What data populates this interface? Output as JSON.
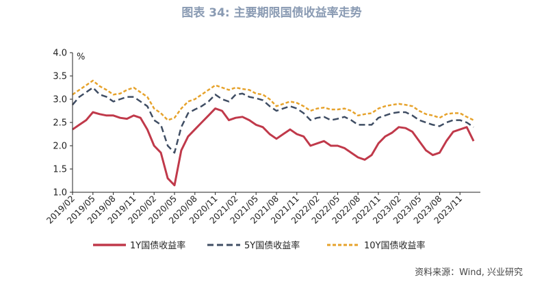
{
  "title": "图表 34: 主要期限国债收益率走势",
  "source": "资料来源：Wind, 兴业研究",
  "chart_data": {
    "type": "line",
    "title": "图表 34: 主要期限国债收益率走势",
    "unit": "%",
    "ylim": [
      1.0,
      4.0
    ],
    "y_ticks": [
      "1.0",
      "1.5",
      "2.0",
      "2.5",
      "3.0",
      "3.5",
      "4.0"
    ],
    "x_range": [
      "2019/02",
      "2024/02"
    ],
    "x_tick_labels": [
      "2019/02",
      "2019/05",
      "2019/08",
      "2019/11",
      "2020/02",
      "2020/05",
      "2020/08",
      "2020/11",
      "2021/02",
      "2021/05",
      "2021/08",
      "2021/11",
      "2022/02",
      "2022/05",
      "2022/08",
      "2022/11",
      "2023/02",
      "2023/05",
      "2023/08",
      "2023/11"
    ],
    "grid": false,
    "legend_position": "bottom",
    "x": [
      "2019/02",
      "2019/03",
      "2019/04",
      "2019/05",
      "2019/06",
      "2019/07",
      "2019/08",
      "2019/09",
      "2019/10",
      "2019/11",
      "2019/12",
      "2020/01",
      "2020/02",
      "2020/03",
      "2020/04",
      "2020/05",
      "2020/06",
      "2020/07",
      "2020/08",
      "2020/09",
      "2020/10",
      "2020/11",
      "2020/12",
      "2021/01",
      "2021/02",
      "2021/03",
      "2021/04",
      "2021/05",
      "2021/06",
      "2021/07",
      "2021/08",
      "2021/09",
      "2021/10",
      "2021/11",
      "2021/12",
      "2022/01",
      "2022/02",
      "2022/03",
      "2022/04",
      "2022/05",
      "2022/06",
      "2022/07",
      "2022/08",
      "2022/09",
      "2022/10",
      "2022/11",
      "2022/12",
      "2023/01",
      "2023/02",
      "2023/03",
      "2023/04",
      "2023/05",
      "2023/06",
      "2023/07",
      "2023/08",
      "2023/09",
      "2023/10",
      "2023/11",
      "2023/12",
      "2024/01"
    ],
    "series": [
      {
        "name": "1Y国债收益率",
        "color": "#c0394a",
        "dash": "solid",
        "values": [
          2.35,
          2.45,
          2.55,
          2.72,
          2.68,
          2.65,
          2.65,
          2.6,
          2.58,
          2.65,
          2.6,
          2.35,
          2.0,
          1.85,
          1.3,
          1.15,
          1.9,
          2.2,
          2.35,
          2.5,
          2.65,
          2.8,
          2.75,
          2.55,
          2.6,
          2.62,
          2.55,
          2.45,
          2.4,
          2.25,
          2.15,
          2.25,
          2.35,
          2.25,
          2.2,
          2.0,
          2.05,
          2.1,
          2.0,
          2.0,
          1.95,
          1.85,
          1.75,
          1.7,
          1.8,
          2.05,
          2.2,
          2.28,
          2.4,
          2.38,
          2.3,
          2.1,
          1.9,
          1.8,
          1.85,
          2.1,
          2.3,
          2.35,
          2.4,
          2.1
        ]
      },
      {
        "name": "5Y国债收益率",
        "color": "#3f4d63",
        "dash": "dashed",
        "values": [
          2.88,
          3.05,
          3.15,
          3.25,
          3.1,
          3.05,
          2.95,
          3.0,
          3.05,
          3.05,
          2.95,
          2.85,
          2.55,
          2.45,
          2.0,
          1.85,
          2.4,
          2.7,
          2.78,
          2.85,
          2.95,
          3.1,
          3.0,
          2.95,
          3.1,
          3.12,
          3.05,
          3.02,
          2.98,
          2.85,
          2.75,
          2.8,
          2.85,
          2.8,
          2.7,
          2.55,
          2.6,
          2.62,
          2.55,
          2.58,
          2.62,
          2.55,
          2.45,
          2.45,
          2.45,
          2.6,
          2.65,
          2.7,
          2.72,
          2.72,
          2.65,
          2.55,
          2.5,
          2.45,
          2.42,
          2.5,
          2.55,
          2.55,
          2.5,
          2.4
        ]
      },
      {
        "name": "10Y国债收益率",
        "color": "#e6a22b",
        "dash": "dotted",
        "values": [
          3.1,
          3.2,
          3.3,
          3.4,
          3.28,
          3.2,
          3.1,
          3.12,
          3.2,
          3.25,
          3.15,
          3.05,
          2.8,
          2.7,
          2.55,
          2.6,
          2.8,
          2.95,
          3.0,
          3.1,
          3.2,
          3.3,
          3.25,
          3.2,
          3.25,
          3.22,
          3.2,
          3.12,
          3.1,
          3.0,
          2.85,
          2.9,
          2.95,
          2.92,
          2.85,
          2.75,
          2.8,
          2.82,
          2.78,
          2.78,
          2.8,
          2.75,
          2.65,
          2.68,
          2.7,
          2.8,
          2.85,
          2.88,
          2.9,
          2.88,
          2.85,
          2.75,
          2.68,
          2.65,
          2.6,
          2.68,
          2.7,
          2.7,
          2.62,
          2.55
        ]
      }
    ]
  }
}
